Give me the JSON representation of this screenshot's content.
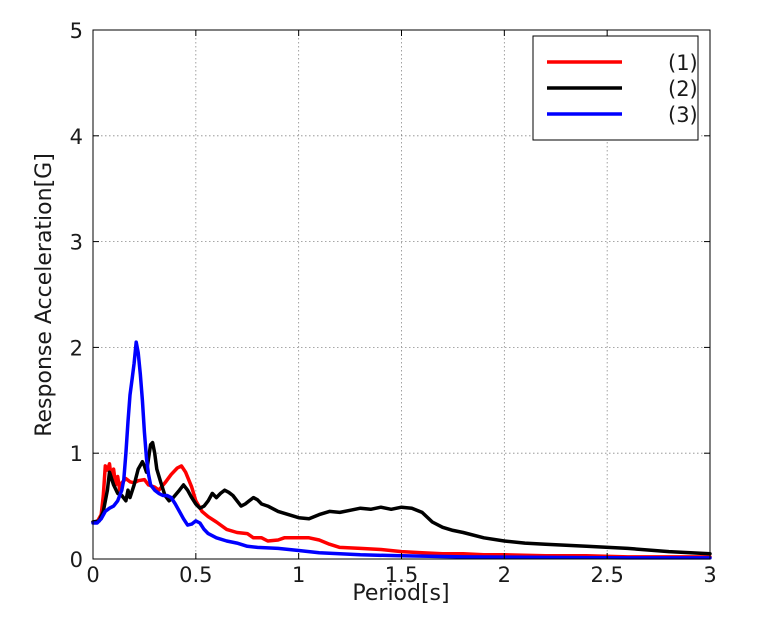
{
  "chart_data": {
    "type": "line",
    "title": "",
    "xlabel": "Period[s]",
    "ylabel": "Response Acceleration[G]",
    "xlim": [
      0,
      3
    ],
    "ylim": [
      0,
      5
    ],
    "xticks": [
      "0",
      "0.5",
      "1",
      "1.5",
      "2",
      "2.5",
      "3"
    ],
    "yticks": [
      "0",
      "1",
      "2",
      "3",
      "4",
      "5"
    ],
    "grid": true,
    "legend_position": "top-right",
    "series": [
      {
        "name": "(1)",
        "color": "#ff0000",
        "points": [
          [
            0,
            0.35
          ],
          [
            0.02,
            0.35
          ],
          [
            0.04,
            0.42
          ],
          [
            0.05,
            0.6
          ],
          [
            0.06,
            0.88
          ],
          [
            0.07,
            0.84
          ],
          [
            0.08,
            0.9
          ],
          [
            0.09,
            0.75
          ],
          [
            0.1,
            0.85
          ],
          [
            0.11,
            0.7
          ],
          [
            0.12,
            0.78
          ],
          [
            0.13,
            0.65
          ],
          [
            0.14,
            0.72
          ],
          [
            0.16,
            0.76
          ],
          [
            0.18,
            0.73
          ],
          [
            0.2,
            0.72
          ],
          [
            0.22,
            0.74
          ],
          [
            0.25,
            0.75
          ],
          [
            0.27,
            0.7
          ],
          [
            0.3,
            0.68
          ],
          [
            0.32,
            0.65
          ],
          [
            0.35,
            0.72
          ],
          [
            0.38,
            0.8
          ],
          [
            0.41,
            0.86
          ],
          [
            0.43,
            0.88
          ],
          [
            0.45,
            0.82
          ],
          [
            0.48,
            0.68
          ],
          [
            0.5,
            0.55
          ],
          [
            0.53,
            0.45
          ],
          [
            0.56,
            0.4
          ],
          [
            0.6,
            0.35
          ],
          [
            0.65,
            0.28
          ],
          [
            0.7,
            0.25
          ],
          [
            0.75,
            0.24
          ],
          [
            0.78,
            0.2
          ],
          [
            0.82,
            0.2
          ],
          [
            0.85,
            0.17
          ],
          [
            0.9,
            0.18
          ],
          [
            0.93,
            0.2
          ],
          [
            1.0,
            0.2
          ],
          [
            1.05,
            0.2
          ],
          [
            1.1,
            0.18
          ],
          [
            1.15,
            0.14
          ],
          [
            1.2,
            0.11
          ],
          [
            1.3,
            0.1
          ],
          [
            1.4,
            0.09
          ],
          [
            1.5,
            0.07
          ],
          [
            1.6,
            0.06
          ],
          [
            1.7,
            0.05
          ],
          [
            1.8,
            0.05
          ],
          [
            1.9,
            0.04
          ],
          [
            2.0,
            0.04
          ],
          [
            2.2,
            0.03
          ],
          [
            2.4,
            0.03
          ],
          [
            2.6,
            0.02
          ],
          [
            2.8,
            0.02
          ],
          [
            3.0,
            0.02
          ]
        ]
      },
      {
        "name": "(2)",
        "color": "#000000",
        "points": [
          [
            0,
            0.35
          ],
          [
            0.03,
            0.36
          ],
          [
            0.05,
            0.45
          ],
          [
            0.07,
            0.65
          ],
          [
            0.08,
            0.82
          ],
          [
            0.1,
            0.7
          ],
          [
            0.12,
            0.62
          ],
          [
            0.14,
            0.6
          ],
          [
            0.16,
            0.55
          ],
          [
            0.17,
            0.65
          ],
          [
            0.18,
            0.58
          ],
          [
            0.2,
            0.7
          ],
          [
            0.22,
            0.85
          ],
          [
            0.24,
            0.92
          ],
          [
            0.25,
            0.88
          ],
          [
            0.26,
            0.82
          ],
          [
            0.27,
            0.95
          ],
          [
            0.28,
            1.08
          ],
          [
            0.29,
            1.1
          ],
          [
            0.3,
            1.0
          ],
          [
            0.31,
            0.85
          ],
          [
            0.33,
            0.72
          ],
          [
            0.35,
            0.6
          ],
          [
            0.37,
            0.55
          ],
          [
            0.39,
            0.58
          ],
          [
            0.42,
            0.65
          ],
          [
            0.44,
            0.7
          ],
          [
            0.46,
            0.65
          ],
          [
            0.48,
            0.58
          ],
          [
            0.5,
            0.52
          ],
          [
            0.52,
            0.48
          ],
          [
            0.54,
            0.5
          ],
          [
            0.56,
            0.55
          ],
          [
            0.58,
            0.62
          ],
          [
            0.6,
            0.58
          ],
          [
            0.62,
            0.62
          ],
          [
            0.64,
            0.65
          ],
          [
            0.66,
            0.63
          ],
          [
            0.68,
            0.6
          ],
          [
            0.7,
            0.55
          ],
          [
            0.72,
            0.5
          ],
          [
            0.74,
            0.52
          ],
          [
            0.76,
            0.55
          ],
          [
            0.78,
            0.58
          ],
          [
            0.8,
            0.56
          ],
          [
            0.82,
            0.52
          ],
          [
            0.85,
            0.5
          ],
          [
            0.9,
            0.45
          ],
          [
            0.95,
            0.42
          ],
          [
            1.0,
            0.39
          ],
          [
            1.05,
            0.38
          ],
          [
            1.1,
            0.42
          ],
          [
            1.15,
            0.45
          ],
          [
            1.2,
            0.44
          ],
          [
            1.25,
            0.46
          ],
          [
            1.3,
            0.48
          ],
          [
            1.35,
            0.47
          ],
          [
            1.4,
            0.49
          ],
          [
            1.45,
            0.47
          ],
          [
            1.5,
            0.49
          ],
          [
            1.55,
            0.48
          ],
          [
            1.6,
            0.44
          ],
          [
            1.65,
            0.35
          ],
          [
            1.7,
            0.3
          ],
          [
            1.75,
            0.27
          ],
          [
            1.8,
            0.25
          ],
          [
            1.9,
            0.2
          ],
          [
            2.0,
            0.17
          ],
          [
            2.1,
            0.15
          ],
          [
            2.2,
            0.14
          ],
          [
            2.4,
            0.12
          ],
          [
            2.6,
            0.1
          ],
          [
            2.8,
            0.07
          ],
          [
            3.0,
            0.05
          ]
        ]
      },
      {
        "name": "(3)",
        "color": "#0000ff",
        "points": [
          [
            0,
            0.34
          ],
          [
            0.02,
            0.34
          ],
          [
            0.04,
            0.38
          ],
          [
            0.06,
            0.45
          ],
          [
            0.08,
            0.48
          ],
          [
            0.1,
            0.5
          ],
          [
            0.12,
            0.55
          ],
          [
            0.14,
            0.65
          ],
          [
            0.15,
            0.75
          ],
          [
            0.16,
            1.0
          ],
          [
            0.17,
            1.3
          ],
          [
            0.18,
            1.55
          ],
          [
            0.19,
            1.7
          ],
          [
            0.2,
            1.85
          ],
          [
            0.21,
            2.05
          ],
          [
            0.22,
            1.95
          ],
          [
            0.23,
            1.75
          ],
          [
            0.24,
            1.5
          ],
          [
            0.25,
            1.2
          ],
          [
            0.26,
            0.95
          ],
          [
            0.27,
            0.8
          ],
          [
            0.28,
            0.7
          ],
          [
            0.3,
            0.65
          ],
          [
            0.32,
            0.62
          ],
          [
            0.34,
            0.6
          ],
          [
            0.36,
            0.6
          ],
          [
            0.38,
            0.58
          ],
          [
            0.4,
            0.52
          ],
          [
            0.42,
            0.45
          ],
          [
            0.44,
            0.38
          ],
          [
            0.46,
            0.32
          ],
          [
            0.48,
            0.33
          ],
          [
            0.5,
            0.36
          ],
          [
            0.52,
            0.34
          ],
          [
            0.54,
            0.28
          ],
          [
            0.56,
            0.24
          ],
          [
            0.6,
            0.2
          ],
          [
            0.65,
            0.17
          ],
          [
            0.7,
            0.15
          ],
          [
            0.75,
            0.12
          ],
          [
            0.8,
            0.11
          ],
          [
            0.9,
            0.1
          ],
          [
            1.0,
            0.08
          ],
          [
            1.1,
            0.06
          ],
          [
            1.2,
            0.05
          ],
          [
            1.3,
            0.04
          ],
          [
            1.5,
            0.03
          ],
          [
            1.8,
            0.02
          ],
          [
            2.2,
            0.015
          ],
          [
            2.6,
            0.01
          ],
          [
            3.0,
            0.01
          ]
        ]
      }
    ]
  }
}
